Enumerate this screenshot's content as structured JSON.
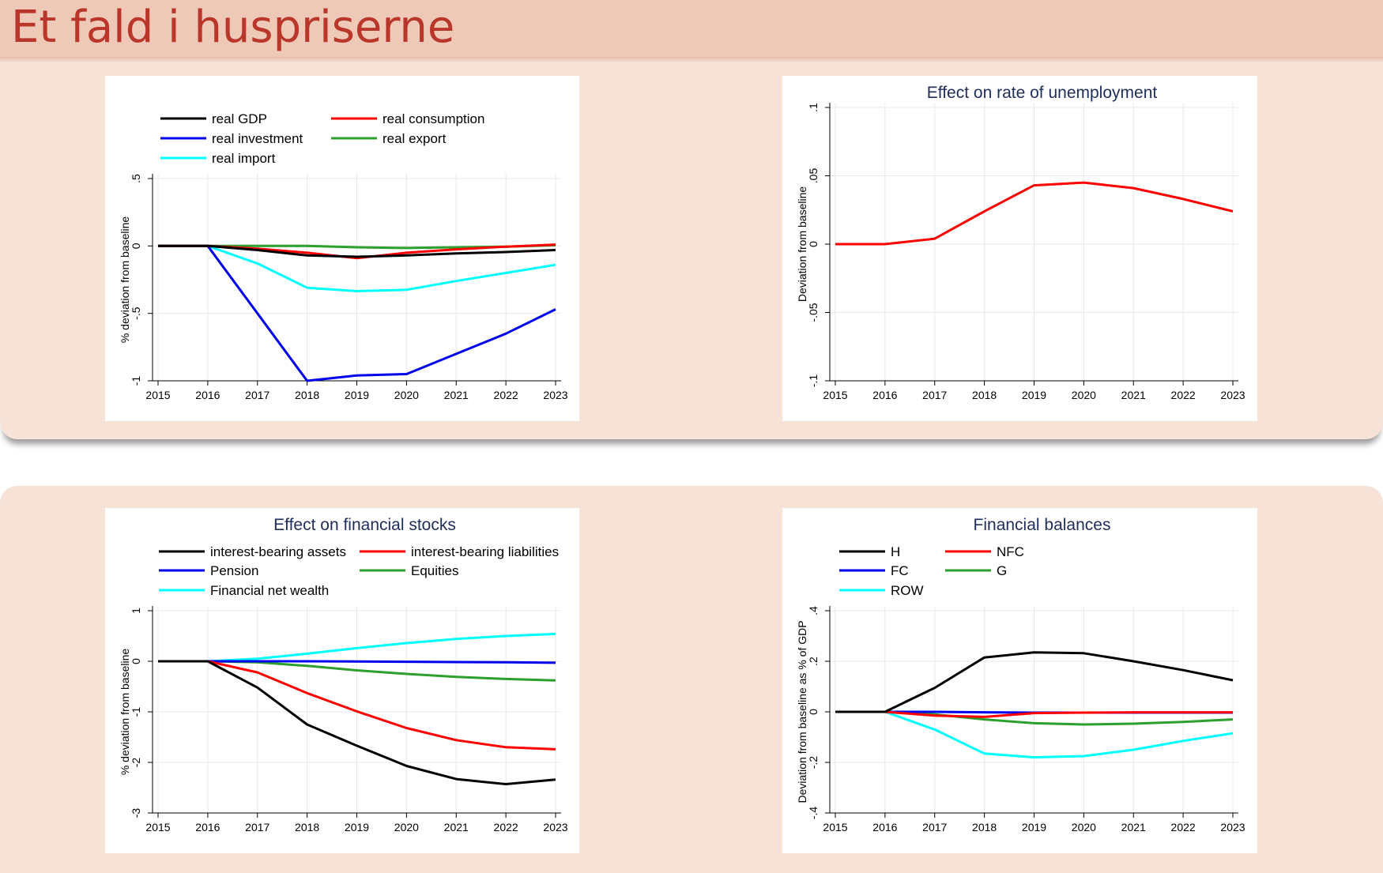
{
  "slide": {
    "title": "Et fald i huspriserne"
  },
  "colors": {
    "header_bg": "#efc9b7",
    "panel_bg": "#f7e2d8",
    "title_color": "#b8362a",
    "chart_title_color": "#1f2d5a"
  },
  "chart_data": [
    {
      "type": "line",
      "title": "",
      "xlabel": "",
      "ylabel": "% deviation from baseline",
      "x": [
        2015,
        2016,
        2017,
        2018,
        2019,
        2020,
        2021,
        2022,
        2023
      ],
      "xlim": [
        2015,
        2023
      ],
      "ylim": [
        -1,
        0.5
      ],
      "yticks": [
        -1,
        -0.5,
        0,
        0.5
      ],
      "ytick_labels": [
        "-1",
        "-.5",
        "0",
        ".5"
      ],
      "grid": true,
      "legend": "top",
      "series": [
        {
          "name": "real GDP",
          "color": "#000000",
          "values": [
            0,
            0,
            -0.03,
            -0.07,
            -0.08,
            -0.07,
            -0.055,
            -0.045,
            -0.03
          ]
        },
        {
          "name": "real consumption",
          "color": "#ff0000",
          "values": [
            0,
            0,
            -0.02,
            -0.05,
            -0.09,
            -0.05,
            -0.025,
            -0.005,
            0.01
          ]
        },
        {
          "name": "real investment",
          "color": "#0000ee",
          "values": [
            0,
            0,
            -0.5,
            -1.0,
            -0.96,
            -0.95,
            -0.8,
            -0.65,
            -0.47
          ]
        },
        {
          "name": "real export",
          "color": "#2ca02c",
          "values": [
            0,
            0,
            0,
            0,
            -0.01,
            -0.015,
            -0.01,
            -0.005,
            0.005
          ]
        },
        {
          "name": "real import",
          "color": "#00ffff",
          "values": [
            0,
            0,
            -0.13,
            -0.31,
            -0.335,
            -0.325,
            -0.26,
            -0.2,
            -0.14
          ]
        }
      ]
    },
    {
      "type": "line",
      "title": "Effect on rate of unemployment",
      "xlabel": "",
      "ylabel": "Deviation from baseline",
      "x": [
        2015,
        2016,
        2017,
        2018,
        2019,
        2020,
        2021,
        2022,
        2023
      ],
      "xlim": [
        2015,
        2023
      ],
      "ylim": [
        -0.1,
        0.1
      ],
      "yticks": [
        -0.1,
        -0.05,
        0,
        0.05,
        0.1
      ],
      "ytick_labels": [
        "-.1",
        "-.05",
        "0",
        ".05",
        ".1"
      ],
      "grid": true,
      "legend": "none",
      "series": [
        {
          "name": "",
          "color": "#ff0000",
          "values": [
            0,
            0,
            0.004,
            0.024,
            0.043,
            0.045,
            0.041,
            0.033,
            0.024
          ]
        }
      ]
    },
    {
      "type": "line",
      "title": "Effect on financial stocks",
      "xlabel": "",
      "ylabel": "% deviation from baseline",
      "x": [
        2015,
        2016,
        2017,
        2018,
        2019,
        2020,
        2021,
        2022,
        2023
      ],
      "xlim": [
        2015,
        2023
      ],
      "ylim": [
        -3,
        1
      ],
      "yticks": [
        -3,
        -2,
        -1,
        0,
        1
      ],
      "ytick_labels": [
        "-3",
        "-2",
        "-1",
        "0",
        "1"
      ],
      "grid": true,
      "legend": "top",
      "series": [
        {
          "name": "interest-bearing assets",
          "color": "#000000",
          "values": [
            0,
            0,
            -0.52,
            -1.25,
            -1.67,
            -2.07,
            -2.33,
            -2.43,
            -2.34
          ]
        },
        {
          "name": "interest-bearing liabilities",
          "color": "#ff0000",
          "values": [
            0,
            0,
            -0.22,
            -0.63,
            -0.99,
            -1.32,
            -1.56,
            -1.7,
            -1.74
          ]
        },
        {
          "name": "Pension",
          "color": "#0000ee",
          "values": [
            0,
            0,
            0,
            0,
            -0.005,
            -0.01,
            -0.015,
            -0.02,
            -0.03
          ]
        },
        {
          "name": "Equities",
          "color": "#2ca02c",
          "values": [
            0,
            0,
            -0.02,
            -0.09,
            -0.18,
            -0.25,
            -0.31,
            -0.35,
            -0.38
          ]
        },
        {
          "name": "Financial net wealth",
          "color": "#00ffff",
          "values": [
            0,
            0,
            0.05,
            0.15,
            0.26,
            0.36,
            0.44,
            0.5,
            0.54
          ]
        }
      ]
    },
    {
      "type": "line",
      "title": "Financial balances",
      "xlabel": "",
      "ylabel": "Deviation from baseline as % of GDP",
      "x": [
        2015,
        2016,
        2017,
        2018,
        2019,
        2020,
        2021,
        2022,
        2023
      ],
      "xlim": [
        2015,
        2023
      ],
      "ylim": [
        -0.4,
        0.4
      ],
      "yticks": [
        -0.4,
        -0.2,
        0,
        0.2,
        0.4
      ],
      "ytick_labels": [
        "-.4",
        "-.2",
        "0",
        ".2",
        ".4"
      ],
      "grid": true,
      "legend": "top",
      "series": [
        {
          "name": "H",
          "color": "#000000",
          "values": [
            0,
            0,
            0.095,
            0.215,
            0.235,
            0.232,
            0.2,
            0.165,
            0.125
          ]
        },
        {
          "name": "NFC",
          "color": "#ff0000",
          "values": [
            0,
            0,
            -0.015,
            -0.02,
            -0.005,
            -0.003,
            -0.002,
            -0.002,
            -0.002
          ]
        },
        {
          "name": "FC",
          "color": "#0000ee",
          "values": [
            0,
            0,
            0,
            -0.002,
            -0.003,
            -0.003,
            -0.003,
            -0.003,
            -0.003
          ]
        },
        {
          "name": "G",
          "color": "#2ca02c",
          "values": [
            0,
            0,
            -0.01,
            -0.03,
            -0.045,
            -0.05,
            -0.047,
            -0.04,
            -0.03
          ]
        },
        {
          "name": "ROW",
          "color": "#00ffff",
          "values": [
            0,
            0,
            -0.07,
            -0.165,
            -0.18,
            -0.175,
            -0.15,
            -0.115,
            -0.085
          ]
        }
      ]
    }
  ]
}
